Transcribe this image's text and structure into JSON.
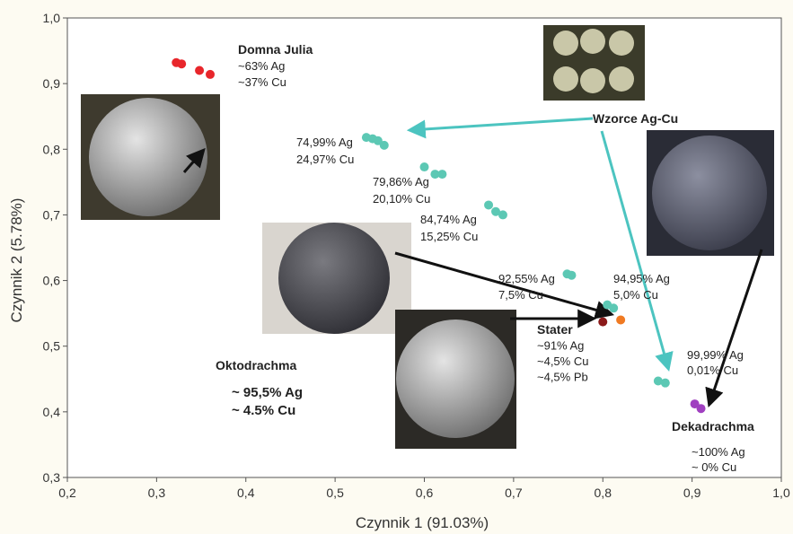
{
  "chart_data": {
    "type": "scatter",
    "x_label": "Czynnik 1 (91.03%)",
    "y_label": "Czynnik 2 (5.78%)",
    "xlim": [
      0.2,
      1.0
    ],
    "ylim": [
      0.3,
      1.0
    ],
    "xticks": [
      {
        "value": 0.2,
        "label": "0,2"
      },
      {
        "value": 0.3,
        "label": "0,3"
      },
      {
        "value": 0.4,
        "label": "0,4"
      },
      {
        "value": 0.5,
        "label": "0,5"
      },
      {
        "value": 0.6,
        "label": "0,6"
      },
      {
        "value": 0.7,
        "label": "0,7"
      },
      {
        "value": 0.8,
        "label": "0,8"
      },
      {
        "value": 0.9,
        "label": "0,9"
      },
      {
        "value": 1.0,
        "label": "1,0"
      }
    ],
    "yticks": [
      {
        "value": 0.3,
        "label": "0,3"
      },
      {
        "value": 0.4,
        "label": "0,4"
      },
      {
        "value": 0.5,
        "label": "0,5"
      },
      {
        "value": 0.6,
        "label": "0,6"
      },
      {
        "value": 0.7,
        "label": "0,7"
      },
      {
        "value": 0.8,
        "label": "0,8"
      },
      {
        "value": 0.9,
        "label": "0,9"
      },
      {
        "value": 1.0,
        "label": "1,0"
      }
    ],
    "grid": false,
    "series": [
      {
        "name": "Domna Julia",
        "color": "#e8262b",
        "x": [
          0.322,
          0.328,
          0.348,
          0.36
        ],
        "values": [
          0.932,
          0.93,
          0.92,
          0.914
        ]
      },
      {
        "name": "Wzorce Ag-Cu",
        "color": "#5cc8b4",
        "x": [
          0.535,
          0.542,
          0.548,
          0.555,
          0.6,
          0.612,
          0.62,
          0.672,
          0.68,
          0.688,
          0.76,
          0.765,
          0.805,
          0.812,
          0.862,
          0.87
        ],
        "values": [
          0.818,
          0.816,
          0.813,
          0.806,
          0.773,
          0.762,
          0.762,
          0.715,
          0.705,
          0.7,
          0.61,
          0.608,
          0.563,
          0.558,
          0.447,
          0.444
        ]
      },
      {
        "name": "Stater",
        "color": "#8b1a1a",
        "x": [
          0.8
        ],
        "values": [
          0.537
        ]
      },
      {
        "color": "#f07a22",
        "x": [
          0.82
        ],
        "values": [
          0.54
        ]
      },
      {
        "name": "Dekadrachma",
        "color": "#a040c0",
        "x": [
          0.903,
          0.91
        ],
        "values": [
          0.412,
          0.405
        ]
      }
    ],
    "annotations": [
      {
        "lines": [
          "Domna Julia",
          "~63% Ag",
          "~37% Cu"
        ]
      },
      {
        "lines": [
          "Wzorce Ag-Cu"
        ]
      },
      {
        "lines": [
          "74,99% Ag",
          "24,97% Cu"
        ]
      },
      {
        "lines": [
          "79,86% Ag",
          "20,10% Cu"
        ]
      },
      {
        "lines": [
          "84,74% Ag",
          "15,25% Cu"
        ]
      },
      {
        "lines": [
          "92,55% Ag",
          "7,5% Cu"
        ]
      },
      {
        "lines": [
          "94,95% Ag",
          "5,0% Cu"
        ]
      },
      {
        "lines": [
          "99,99% Ag",
          "0,01% Cu"
        ]
      },
      {
        "lines": [
          "Stater",
          "~91% Ag",
          "~4,5% Cu",
          "~4,5% Pb"
        ]
      },
      {
        "lines": [
          "Oktodrachma",
          "~ 95,5% Ag",
          "~ 4.5% Cu"
        ]
      },
      {
        "lines": [
          "Dekadrachma",
          "~100% Ag",
          "~ 0% Cu"
        ]
      }
    ]
  }
}
